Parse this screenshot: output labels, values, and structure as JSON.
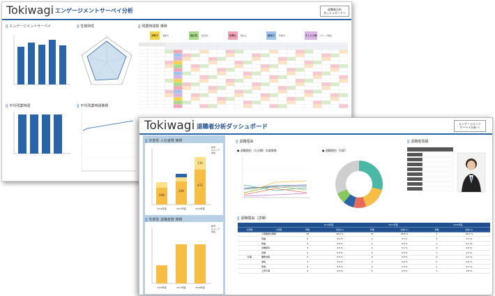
{
  "back_window": {
    "brand": "Tokiwagi",
    "title": "エンゲージメントサーベイ分析",
    "link_button": "退職者分析\nダッシュボードへ",
    "section_engagement": "エンゲージメントサーベイ",
    "section_trait": "性格特性",
    "section_overtime_pref": "残業時間数 推移",
    "section_avg_overtime": "平均残業時間",
    "section_avg_overtime_trend": "平均残業時間推移",
    "legend": [
      {
        "label": "決断力",
        "sub": "決断力",
        "color": "#f7d34b"
      },
      {
        "label": "協応性",
        "sub": "協応性",
        "color": "#a6dc8a"
      },
      {
        "label": "自尊心",
        "sub": "独立心",
        "color": "#f3a3b7"
      },
      {
        "label": "創造力",
        "sub": "影響力",
        "color": "#9fc3ec"
      },
      {
        "label": "ストレス耐性",
        "sub": "ストレス耐性",
        "color": "#d9b3e6"
      }
    ]
  },
  "front_window": {
    "brand": "Tokiwagi",
    "title": "退職者分析ダッシュボード",
    "link_button": "エンゲージメント\nサーベイ分析 へ",
    "section_hire": "年度別 入社者数 推移",
    "section_leave": "年度別 退職者数 推移",
    "section_reason": "退職理由",
    "section_profile": "退職者情報",
    "section_reason_detail": "退職理由（詳細）",
    "line_chart_title": "退職理由（大分類）年度推移",
    "donut_title": "退職理由（内訳）",
    "hire_legend": "新卒\nキャリア\n中途",
    "leave_legend": "新卒\nキャリア\n中途",
    "years": [
      "2016年度",
      "2017年度",
      "2018年度"
    ],
    "hire_values": [
      {
        "a": 248,
        "b": 60,
        "c": 0
      },
      {
        "a": 248,
        "b": 30,
        "c": 0
      },
      {
        "a": 473,
        "b": 134,
        "c": 0
      }
    ],
    "hire_labels": [
      "248",
      "248",
      "473",
      "134"
    ],
    "leave_values": [
      {
        "a": 79,
        "b": 0,
        "c": 0
      },
      {
        "a": 170,
        "b": 0,
        "c": 0
      },
      {
        "a": 170,
        "b": 0,
        "c": 0
      }
    ],
    "table": {
      "header_years": [
        "2016年度",
        "2017年度",
        "2018年度"
      ],
      "sub_headers": [
        "大項目",
        "小項目",
        "件数",
        "割合(%)",
        "件数",
        "割合(%)",
        "件数",
        "割合(%)"
      ],
      "group": "仕事",
      "rows": [
        {
          "name": "人間関係の問題",
          "v": [
            "28",
            "46.0 %",
            "37",
            "28.8 %",
            "4",
            "28.0 %"
          ]
        },
        {
          "name": "待遇",
          "v": [
            "0",
            "0.0 %",
            "2",
            "2.3 %",
            "2",
            "9.1 %"
          ]
        },
        {
          "name": "昇進",
          "v": [
            "0",
            "0.0 %",
            "1",
            "0.0 %",
            "1",
            "9.1 %"
          ]
        },
        {
          "name": "労働環境",
          "v": [
            "2",
            "3.9 %",
            "1",
            "5.1 %",
            "0",
            "0.0 %"
          ]
        },
        {
          "name": "評価",
          "v": [
            "0",
            "0.0 %",
            "0",
            "0.0 %",
            "1",
            "9.1 %"
          ]
        },
        {
          "name": "業務内容",
          "v": [
            "0",
            "0.0 %",
            "0",
            "0.0 %",
            "0",
            "0.0 %"
          ]
        },
        {
          "name": "通勤",
          "v": [
            "5",
            "2.9 %",
            "0",
            "0.0 %",
            "0",
            "0.0 %"
          ]
        },
        {
          "name": "家族",
          "v": [
            "0",
            "0.0 %",
            "2",
            "2.3 %",
            "1",
            "9.1 %"
          ]
        },
        {
          "name": "上司不満",
          "v": [
            "0",
            "0.0 %",
            "2",
            "2.3 %",
            "1",
            "4.8 %"
          ]
        }
      ]
    }
  }
}
